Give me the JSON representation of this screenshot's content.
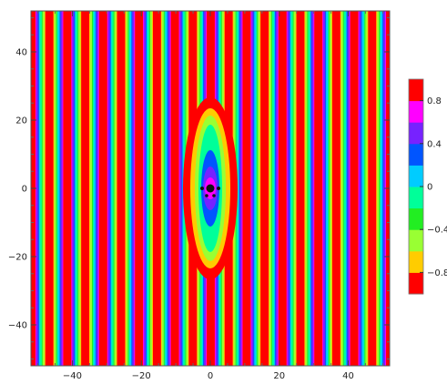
{
  "chart_data": {
    "type": "heatmap",
    "subtype": "contour-plot-with-colorbar",
    "x_range": [
      -52,
      52
    ],
    "y_range": [
      -52,
      52
    ],
    "x_ticks": [
      {
        "value": -40,
        "label": "−40"
      },
      {
        "value": -20,
        "label": "−20"
      },
      {
        "value": 0,
        "label": "0"
      },
      {
        "value": 20,
        "label": "20"
      },
      {
        "value": 40,
        "label": "40"
      }
    ],
    "y_ticks": [
      {
        "value": 40,
        "label": "40"
      },
      {
        "value": 20,
        "label": "20"
      },
      {
        "value": 0,
        "label": "0"
      },
      {
        "value": -20,
        "label": "−20"
      },
      {
        "value": -40,
        "label": "−40"
      }
    ],
    "field": {
      "expression": "approximately cos(k x), vertical stripes",
      "stripe_period": 10.4,
      "center_feature": "localized perturbation near (0, 0) with a dark core"
    },
    "contour_levels": [
      -1.0,
      -0.8,
      -0.6,
      -0.4,
      -0.2,
      0.0,
      0.2,
      0.4,
      0.6,
      0.8,
      1.0
    ],
    "colorbar": {
      "range": [
        -1.0,
        1.0
      ],
      "tick_labels": [
        {
          "value": 0.8,
          "label": "0.8"
        },
        {
          "value": 0.4,
          "label": "0.4"
        },
        {
          "value": 0.0,
          "label": "0"
        },
        {
          "value": -0.4,
          "label": "−0.4"
        },
        {
          "value": -0.8,
          "label": "−0.8"
        }
      ]
    },
    "band_colors": [
      "#ff0000",
      "#ffcc00",
      "#99ff33",
      "#22ee22",
      "#00ff99",
      "#00ccff",
      "#0055ff",
      "#7722ff",
      "#ff00ff",
      "#ff0000"
    ]
  }
}
